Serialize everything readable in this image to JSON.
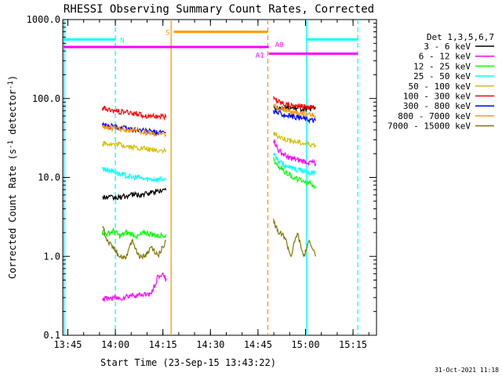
{
  "chart_data": {
    "type": "line",
    "title": "RHESSI Observing Summary Count Rates, Corrected",
    "xlabel": "Start Time (23-Sep-15 13:43:22)",
    "ylabel_prefix": "Corrected Count Rate (s",
    "ylabel_sup": "-1",
    "ylabel_suffix": " detector",
    "ylabel_end": ")",
    "x_unit": "minutes after 13:43:22",
    "xlim": [
      0,
      99
    ],
    "ylim": [
      0.1,
      1000
    ],
    "yscale": "log",
    "xticks": [
      {
        "label": "13:45",
        "value": 1.6
      },
      {
        "label": "14:00",
        "value": 16.6
      },
      {
        "label": "14:15",
        "value": 31.6
      },
      {
        "label": "14:30",
        "value": 46.6
      },
      {
        "label": "14:45",
        "value": 61.6
      },
      {
        "label": "15:00",
        "value": 76.6
      },
      {
        "label": "15:15",
        "value": 91.6
      }
    ],
    "yticks": [
      {
        "label": "0.1",
        "value": 0.1
      },
      {
        "label": "1.0",
        "value": 1
      },
      {
        "label": "10.0",
        "value": 10
      },
      {
        "label": "100.0",
        "value": 100
      },
      {
        "label": "1000.0",
        "value": 1000
      }
    ],
    "legend_header": "Det 1,3,5,6,7",
    "legend_placement": "right",
    "series": [
      {
        "name": "3 - 6 keV",
        "color": "#000000",
        "seg1": {
          "x": [
            12.5,
            14,
            16,
            18,
            20,
            22,
            24,
            26,
            28,
            30,
            32.6
          ],
          "y": [
            5.5,
            5.6,
            5.5,
            5.6,
            5.8,
            6.0,
            6.0,
            6.1,
            6.4,
            6.8,
            6.9
          ]
        },
        "seg2": {
          "x": [
            66.5,
            68,
            70,
            72,
            74,
            76,
            78,
            79.8
          ],
          "y": [
            78,
            77,
            76,
            75,
            75,
            74,
            74,
            75
          ]
        }
      },
      {
        "name": "6 - 12 keV",
        "color": "#ff00ff",
        "seg1": {
          "x": [
            12.5,
            14,
            16,
            18,
            20,
            22,
            24,
            26,
            28,
            30,
            32,
            32.6
          ],
          "y": [
            0.29,
            0.29,
            0.3,
            0.29,
            0.31,
            0.32,
            0.32,
            0.33,
            0.34,
            0.55,
            0.58,
            0.5
          ]
        },
        "seg2": {
          "x": [
            66.5,
            68,
            70,
            72,
            74,
            76,
            78,
            79.8
          ],
          "y": [
            30,
            22,
            19,
            17.5,
            16.5,
            16,
            15.5,
            15
          ]
        }
      },
      {
        "name": "12 - 25 keV",
        "color": "#00ff00",
        "seg1": {
          "x": [
            12.5,
            14,
            16,
            18,
            20,
            22,
            24,
            26,
            28,
            30,
            32.6
          ],
          "y": [
            2.0,
            1.9,
            2.1,
            1.8,
            2.0,
            1.9,
            1.8,
            2.0,
            1.9,
            1.8,
            1.9
          ]
        },
        "seg2": {
          "x": [
            66.5,
            68,
            70,
            72,
            74,
            76,
            78,
            79.8
          ],
          "y": [
            17,
            14,
            12,
            10.5,
            9.5,
            9,
            8.5,
            7.5
          ]
        }
      },
      {
        "name": "25 - 50 keV",
        "color": "#00ffff",
        "seg1": {
          "x": [
            12.5,
            14,
            16,
            18,
            20,
            22,
            24,
            26,
            28,
            30,
            32.6
          ],
          "y": [
            13,
            12.5,
            12,
            11,
            10.5,
            10,
            10,
            9.5,
            9.5,
            9.5,
            9.5
          ]
        },
        "seg2": {
          "x": [
            66.5,
            68,
            70,
            72,
            74,
            76,
            78,
            79.8
          ],
          "y": [
            20,
            16,
            14,
            13,
            12.5,
            12,
            11.5,
            11.5
          ]
        }
      },
      {
        "name": "50 - 100 keV",
        "color": "#d4c000",
        "seg1": {
          "x": [
            12.5,
            14,
            16,
            18,
            20,
            22,
            24,
            26,
            28,
            30,
            32.6
          ],
          "y": [
            27,
            27,
            26,
            26,
            25,
            24,
            23.5,
            23,
            22.5,
            22,
            22
          ]
        },
        "seg2": {
          "x": [
            66.5,
            68,
            70,
            72,
            74,
            76,
            78,
            79.8
          ],
          "y": [
            36,
            33,
            31,
            29,
            28,
            27,
            26.5,
            26
          ]
        }
      },
      {
        "name": "100 - 300 keV",
        "color": "#ff0000",
        "seg1": {
          "x": [
            12.5,
            14,
            16,
            18,
            20,
            22,
            24,
            26,
            28,
            30,
            32.6
          ],
          "y": [
            75,
            72,
            70,
            68,
            67,
            65,
            63,
            61,
            60,
            59,
            58
          ]
        },
        "seg2": {
          "x": [
            66.5,
            68,
            70,
            72,
            74,
            76,
            78,
            79.8
          ],
          "y": [
            100,
            92,
            86,
            82,
            80,
            79,
            78,
            78
          ]
        }
      },
      {
        "name": "300 - 800 keV",
        "color": "#0000ff",
        "seg1": {
          "x": [
            12.5,
            14,
            16,
            18,
            20,
            22,
            24,
            26,
            28,
            30,
            32.6
          ],
          "y": [
            46,
            45,
            44,
            43,
            42,
            41,
            40,
            39,
            38,
            37,
            37
          ]
        },
        "seg2": {
          "x": [
            66.5,
            68,
            70,
            72,
            74,
            76,
            78,
            79.8
          ],
          "y": [
            70,
            65,
            62,
            60,
            58,
            56,
            54,
            52
          ]
        }
      },
      {
        "name": "800 - 7000 keV",
        "color": "#ff9900",
        "seg1": {
          "x": [
            12.5,
            14,
            16,
            18,
            20,
            22,
            24,
            26,
            28,
            30,
            32.6
          ],
          "y": [
            44,
            43,
            42,
            41,
            40,
            39,
            38,
            37,
            36,
            35,
            35
          ]
        },
        "seg2": {
          "x": [
            66.5,
            68,
            70,
            72,
            74,
            76,
            78,
            79.8
          ],
          "y": [
            82,
            76,
            72,
            68,
            66,
            64,
            62,
            60
          ]
        }
      },
      {
        "name": "7000 - 15000 keV",
        "color": "#807800",
        "seg1": {
          "x": [
            12.5,
            14,
            16,
            18,
            20,
            22,
            24,
            26,
            28,
            30,
            32.6
          ],
          "y": [
            2.5,
            1.6,
            1.3,
            1.0,
            1.0,
            1.6,
            1.0,
            1.0,
            1.3,
            1.0,
            1.6
          ]
        },
        "seg2": {
          "x": [
            66.5,
            68,
            70,
            72,
            74,
            76,
            78,
            79.8
          ],
          "y": [
            2.8,
            2.0,
            1.8,
            1.0,
            2.0,
            1.0,
            1.6,
            1.0
          ]
        }
      }
    ],
    "vlines": [
      {
        "x": 0.4,
        "color": "#00ffff",
        "style": "solid"
      },
      {
        "x": 16.6,
        "color": "#00ffff",
        "style": "dashed"
      },
      {
        "x": 34.2,
        "color": "#ff9900",
        "style": "solid"
      },
      {
        "x": 64.7,
        "color": "#ff9900",
        "style": "dashed"
      },
      {
        "x": 76.9,
        "color": "#00ffff",
        "style": "solid"
      },
      {
        "x": 93.1,
        "color": "#00ffff",
        "style": "dashed"
      }
    ],
    "bars": [
      {
        "label": "N",
        "color": "#00ffff",
        "x0": 0,
        "x1": 16.6,
        "y": 560
      },
      {
        "label": "",
        "color": "#00ffff",
        "x0": 76.9,
        "x1": 93.1,
        "y": 560
      },
      {
        "label": "S",
        "color": "#ff9900",
        "x0": 35.0,
        "x1": 64.7,
        "y": 700
      },
      {
        "label": "A0",
        "color": "#ff00ff",
        "x0": 0,
        "x1": 65,
        "y": 450
      },
      {
        "label": "A1",
        "color": "#ff00ff",
        "x0": 65,
        "x1": 93.1,
        "y": 370
      }
    ],
    "timestamp": "31-Oct-2021 11:18"
  }
}
